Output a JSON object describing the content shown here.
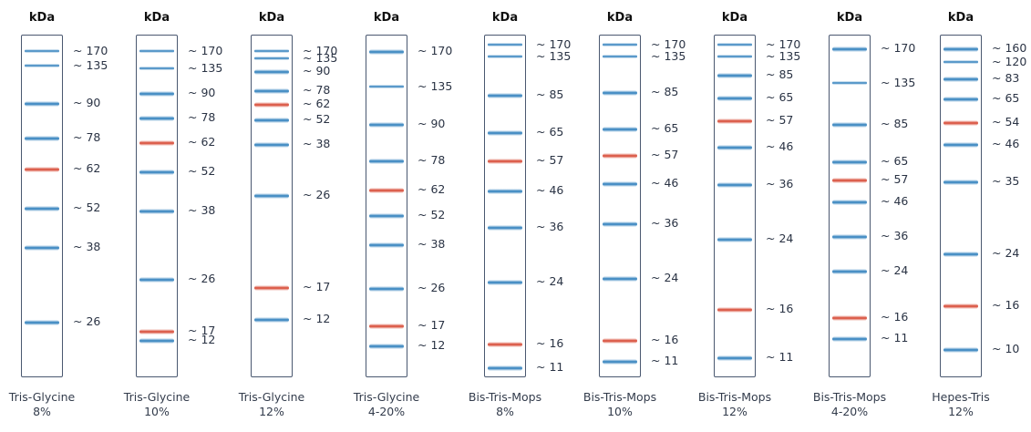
{
  "unit_label": "kDa",
  "colors": {
    "blue_band": "#3a86c0",
    "red_band": "#d9523e",
    "lane_border": "#4a5870"
  },
  "lanes": [
    {
      "caption": [
        "Tris-Glycine",
        "8%"
      ],
      "bands": [
        {
          "label": "~ 170",
          "color": "blue"
        },
        {
          "label": "~ 135",
          "color": "blue"
        },
        {
          "label": "~ 90",
          "color": "blue"
        },
        {
          "label": "~ 78",
          "color": "blue"
        },
        {
          "label": "~ 62",
          "color": "red"
        },
        {
          "label": "~ 52",
          "color": "blue"
        },
        {
          "label": "~ 38",
          "color": "blue"
        },
        {
          "label": "~ 26",
          "color": "blue"
        }
      ]
    },
    {
      "caption": [
        "Tris-Glycine",
        "10%"
      ],
      "bands": [
        {
          "label": "~ 170",
          "color": "blue"
        },
        {
          "label": "~ 135",
          "color": "blue"
        },
        {
          "label": "~ 90",
          "color": "blue"
        },
        {
          "label": "~ 78",
          "color": "blue"
        },
        {
          "label": "~ 62",
          "color": "red"
        },
        {
          "label": "~ 52",
          "color": "blue"
        },
        {
          "label": "~ 38",
          "color": "blue"
        },
        {
          "label": "~ 26",
          "color": "blue"
        },
        {
          "label": "~ 17",
          "color": "red"
        },
        {
          "label": "~ 12",
          "color": "blue"
        }
      ]
    },
    {
      "caption": [
        "Tris-Glycine",
        "12%"
      ],
      "bands": [
        {
          "label": "~ 170",
          "color": "blue"
        },
        {
          "label": "~ 135",
          "color": "blue"
        },
        {
          "label": "~ 90",
          "color": "blue"
        },
        {
          "label": "~ 78",
          "color": "blue"
        },
        {
          "label": "~ 62",
          "color": "red"
        },
        {
          "label": "~ 52",
          "color": "blue"
        },
        {
          "label": "~ 38",
          "color": "blue"
        },
        {
          "label": "~ 26",
          "color": "blue"
        },
        {
          "label": "~ 17",
          "color": "red"
        },
        {
          "label": "~ 12",
          "color": "blue"
        }
      ]
    },
    {
      "caption": [
        "Tris-Glycine",
        "4-20%"
      ],
      "bands": [
        {
          "label": "~ 170",
          "color": "blue"
        },
        {
          "label": "~ 135",
          "color": "blue"
        },
        {
          "label": "~ 90",
          "color": "blue"
        },
        {
          "label": "~ 78",
          "color": "blue"
        },
        {
          "label": "~ 62",
          "color": "red"
        },
        {
          "label": "~ 52",
          "color": "blue"
        },
        {
          "label": "~ 38",
          "color": "blue"
        },
        {
          "label": "~ 26",
          "color": "blue"
        },
        {
          "label": "~ 17",
          "color": "red"
        },
        {
          "label": "~ 12",
          "color": "blue"
        }
      ]
    },
    {
      "caption": [
        "Bis-Tris-Mops",
        "8%"
      ],
      "bands": [
        {
          "label": "~ 170",
          "color": "blue"
        },
        {
          "label": "~ 135",
          "color": "blue"
        },
        {
          "label": "~ 85",
          "color": "blue"
        },
        {
          "label": "~ 65",
          "color": "blue"
        },
        {
          "label": "~ 57",
          "color": "red"
        },
        {
          "label": "~ 46",
          "color": "blue"
        },
        {
          "label": "~ 36",
          "color": "blue"
        },
        {
          "label": "~ 24",
          "color": "blue"
        },
        {
          "label": "~ 16",
          "color": "red"
        },
        {
          "label": "~ 11",
          "color": "blue"
        }
      ]
    },
    {
      "caption": [
        "Bis-Tris-Mops",
        "10%"
      ],
      "bands": [
        {
          "label": "~ 170",
          "color": "blue"
        },
        {
          "label": "~ 135",
          "color": "blue"
        },
        {
          "label": "~ 85",
          "color": "blue"
        },
        {
          "label": "~ 65",
          "color": "blue"
        },
        {
          "label": "~ 57",
          "color": "red"
        },
        {
          "label": "~ 46",
          "color": "blue"
        },
        {
          "label": "~ 36",
          "color": "blue"
        },
        {
          "label": "~ 24",
          "color": "blue"
        },
        {
          "label": "~ 16",
          "color": "red"
        },
        {
          "label": "~ 11",
          "color": "blue"
        }
      ]
    },
    {
      "caption": [
        "Bis-Tris-Mops",
        "12%"
      ],
      "bands": [
        {
          "label": "~ 170",
          "color": "blue"
        },
        {
          "label": "~ 135",
          "color": "blue"
        },
        {
          "label": "~ 85",
          "color": "blue"
        },
        {
          "label": "~ 65",
          "color": "blue"
        },
        {
          "label": "~ 57",
          "color": "red"
        },
        {
          "label": "~ 46",
          "color": "blue"
        },
        {
          "label": "~ 36",
          "color": "blue"
        },
        {
          "label": "~ 24",
          "color": "blue"
        },
        {
          "label": "~ 16",
          "color": "red"
        },
        {
          "label": "~ 11",
          "color": "blue"
        }
      ]
    },
    {
      "caption": [
        "Bis-Tris-Mops",
        "4-20%"
      ],
      "bands": [
        {
          "label": "~ 170",
          "color": "blue"
        },
        {
          "label": "~ 135",
          "color": "blue"
        },
        {
          "label": "~ 85",
          "color": "blue"
        },
        {
          "label": "~ 65",
          "color": "blue"
        },
        {
          "label": "~ 57",
          "color": "red"
        },
        {
          "label": "~ 46",
          "color": "blue"
        },
        {
          "label": "~ 36",
          "color": "blue"
        },
        {
          "label": "~ 24",
          "color": "blue"
        },
        {
          "label": "~ 16",
          "color": "red"
        },
        {
          "label": "~ 11",
          "color": "blue"
        }
      ]
    },
    {
      "caption": [
        "Hepes-Tris",
        "12%"
      ],
      "bands": [
        {
          "label": "~ 160",
          "color": "blue"
        },
        {
          "label": "~ 120",
          "color": "blue"
        },
        {
          "label": "~ 83",
          "color": "blue"
        },
        {
          "label": "~ 65",
          "color": "blue"
        },
        {
          "label": "~ 54",
          "color": "red"
        },
        {
          "label": "~ 46",
          "color": "blue"
        },
        {
          "label": "~ 35",
          "color": "blue"
        },
        {
          "label": "~ 24",
          "color": "blue"
        },
        {
          "label": "~ 16",
          "color": "red"
        },
        {
          "label": "~ 10",
          "color": "blue"
        }
      ]
    }
  ]
}
